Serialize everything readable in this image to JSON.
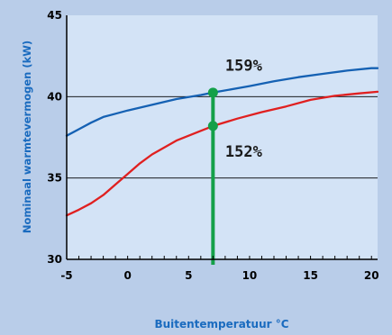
{
  "chart_data": {
    "type": "line",
    "xlabel": "Buitentemperatuur °C",
    "ylabel": "Nominaal warmtevermogen (kW)",
    "xlim": [
      -5,
      20.5
    ],
    "ylim": [
      30,
      45
    ],
    "x_ticks": [
      "-5",
      "0",
      "5",
      "10",
      "15",
      "20"
    ],
    "y_ticks": [
      "30",
      "35",
      "40",
      "45"
    ],
    "grid": "horizontal",
    "series": [
      {
        "color": "#1561b3",
        "x": [
          -5,
          -4,
          -3,
          -2,
          -1,
          0,
          2,
          4,
          6,
          7,
          10,
          12,
          14,
          16,
          18,
          20,
          20.5
        ],
        "y": [
          37.6,
          38.0,
          38.4,
          38.75,
          38.95,
          39.15,
          39.5,
          39.85,
          40.1,
          40.25,
          40.65,
          40.95,
          41.2,
          41.4,
          41.6,
          41.75,
          41.75
        ]
      },
      {
        "color": "#e02020",
        "x": [
          -5,
          -4,
          -3,
          -2,
          -1,
          0,
          1,
          2,
          4,
          6,
          7,
          9,
          11,
          13,
          15,
          17,
          19,
          20.5
        ],
        "y": [
          32.7,
          33.05,
          33.45,
          33.95,
          34.6,
          35.25,
          35.9,
          36.45,
          37.3,
          37.9,
          38.2,
          38.65,
          39.05,
          39.4,
          39.8,
          40.05,
          40.2,
          40.3
        ]
      }
    ],
    "marker_line": {
      "x": 7,
      "color": "#14a049"
    },
    "points": [
      {
        "x": 7,
        "y": 40.25,
        "color": "#14a049"
      },
      {
        "x": 7,
        "y": 38.2,
        "color": "#14a049"
      }
    ],
    "annotations": [
      {
        "text": "159%",
        "x": 8.0,
        "y": 41.6
      },
      {
        "text": "152%",
        "x": 8.0,
        "y": 36.3
      }
    ]
  }
}
